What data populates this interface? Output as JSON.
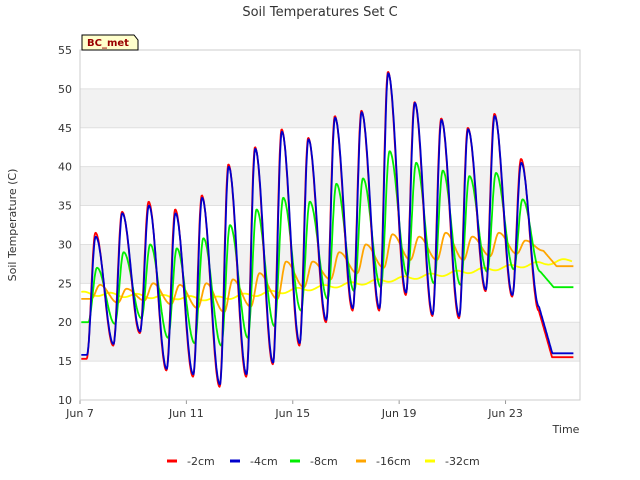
{
  "chart_data": {
    "type": "line",
    "title": "Soil Temperatures Set C",
    "xlabel": "Time",
    "ylabel": "Soil Temperature (C)",
    "site_label": "BC_met",
    "x_unit": "day of June",
    "xlim": [
      7,
      25.8
    ],
    "ylim": [
      10,
      55
    ],
    "y_ticks": [
      10,
      15,
      20,
      25,
      30,
      35,
      40,
      45,
      50,
      55
    ],
    "x_ticks": [
      {
        "value": 7,
        "label": "Jun 7"
      },
      {
        "value": 11,
        "label": "Jun 11"
      },
      {
        "value": 15,
        "label": "Jun 15"
      },
      {
        "value": 19,
        "label": "Jun 19"
      },
      {
        "value": 23,
        "label": "Jun 23"
      }
    ],
    "grid": "horizontal bands",
    "legend_position": "bottom",
    "colors": {
      "-2cm": "#ff0000",
      "-4cm": "#0000cc",
      "-8cm": "#00ee00",
      "-16cm": "#ffa500",
      "-32cm": "#ffff00"
    },
    "daily_extremes": {
      "days": [
        7,
        8,
        9,
        10,
        11,
        12,
        13,
        14,
        15,
        16,
        17,
        18,
        19,
        20,
        21,
        22,
        23,
        24,
        25
      ],
      "-2cm": {
        "max": [
          31.5,
          34.2,
          35.5,
          34.5,
          36.3,
          40.3,
          42.5,
          44.8,
          43.7,
          46.5,
          47.2,
          52.2,
          48.3,
          46.2,
          45.0,
          46.8,
          41.0,
          null,
          null
        ],
        "min": [
          15.3,
          17.0,
          18.6,
          13.8,
          13.0,
          11.7,
          13.0,
          14.6,
          17.0,
          20.0,
          21.5,
          21.5,
          23.5,
          20.8,
          20.5,
          24.0,
          23.3,
          21.5,
          null
        ]
      },
      "-4cm": {
        "max": [
          31.0,
          34.0,
          35.0,
          34.0,
          36.0,
          40.0,
          42.3,
          44.5,
          43.5,
          46.3,
          47.0,
          52.0,
          48.2,
          46.0,
          44.8,
          46.5,
          40.5,
          null,
          null
        ],
        "min": [
          15.8,
          17.2,
          18.8,
          14.0,
          13.3,
          12.0,
          13.3,
          14.8,
          17.3,
          20.3,
          21.8,
          21.8,
          23.8,
          21.0,
          20.8,
          24.2,
          23.5,
          22.0,
          null
        ]
      },
      "-8cm": {
        "max": [
          27.0,
          29.0,
          30.0,
          29.5,
          30.8,
          32.5,
          34.5,
          36.0,
          35.5,
          37.8,
          38.5,
          42.0,
          40.5,
          39.5,
          38.8,
          39.2,
          35.8,
          null,
          null
        ],
        "min": [
          20.0,
          19.8,
          20.5,
          18.0,
          17.3,
          17.0,
          18.0,
          19.5,
          21.5,
          23.0,
          24.0,
          24.5,
          26.0,
          25.0,
          24.8,
          26.5,
          26.8,
          26.5,
          null
        ]
      },
      "-16cm": {
        "max": [
          24.8,
          24.3,
          25.0,
          24.8,
          25.0,
          25.5,
          26.3,
          27.8,
          27.8,
          29.0,
          30.0,
          31.3,
          31.0,
          31.5,
          31.0,
          31.5,
          30.5,
          null,
          null
        ],
        "min": [
          23.0,
          22.5,
          22.8,
          22.3,
          21.8,
          21.3,
          22.0,
          23.0,
          24.5,
          25.5,
          26.3,
          27.0,
          28.0,
          28.0,
          28.0,
          28.5,
          28.8,
          29.2,
          null
        ]
      },
      "-32cm": {
        "start": 23.7,
        "mid": 23.0,
        "end": 28.0
      }
    },
    "series": [
      {
        "name": "-2cm"
      },
      {
        "name": "-4cm"
      },
      {
        "name": "-8cm"
      },
      {
        "name": "-16cm"
      },
      {
        "name": "-32cm"
      }
    ]
  }
}
